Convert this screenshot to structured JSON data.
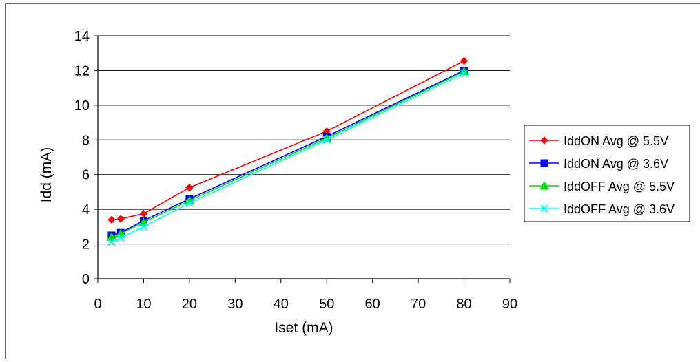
{
  "chart_data": {
    "type": "line",
    "xlabel": "Iset (mA)",
    "ylabel": "Idd (mA)",
    "xlim": [
      0,
      90
    ],
    "ylim": [
      0,
      14
    ],
    "xticks": [
      0,
      10,
      20,
      30,
      40,
      50,
      60,
      70,
      80,
      90
    ],
    "yticks": [
      0,
      2,
      4,
      6,
      8,
      10,
      12,
      14
    ],
    "grid": "horizontal",
    "legend_position": "right",
    "series": [
      {
        "name": "IddON Avg @ 5.5V",
        "color": "#FF0000",
        "marker": "diamond",
        "points": [
          [
            3,
            3.4
          ],
          [
            5,
            3.45
          ],
          [
            10,
            3.75
          ],
          [
            20,
            5.25
          ],
          [
            50,
            8.5
          ],
          [
            80,
            12.55
          ]
        ]
      },
      {
        "name": "IddON Avg @ 3.6V",
        "color": "#0000FF",
        "marker": "square",
        "points": [
          [
            3,
            2.5
          ],
          [
            5,
            2.65
          ],
          [
            10,
            3.35
          ],
          [
            20,
            4.6
          ],
          [
            50,
            8.2
          ],
          [
            80,
            12.0
          ]
        ]
      },
      {
        "name": "IddOFF Avg @ 5.5V",
        "color": "#00E000",
        "marker": "triangle",
        "points": [
          [
            3,
            2.4
          ],
          [
            5,
            2.6
          ],
          [
            10,
            3.25
          ],
          [
            20,
            4.5
          ],
          [
            50,
            8.1
          ],
          [
            80,
            11.95
          ]
        ]
      },
      {
        "name": "IddOFF Avg @ 3.6V",
        "color": "#00FFFF",
        "marker": "x",
        "points": [
          [
            3,
            2.1
          ],
          [
            5,
            2.35
          ],
          [
            10,
            3.0
          ],
          [
            20,
            4.35
          ],
          [
            50,
            8.0
          ],
          [
            80,
            11.85
          ]
        ]
      }
    ]
  }
}
